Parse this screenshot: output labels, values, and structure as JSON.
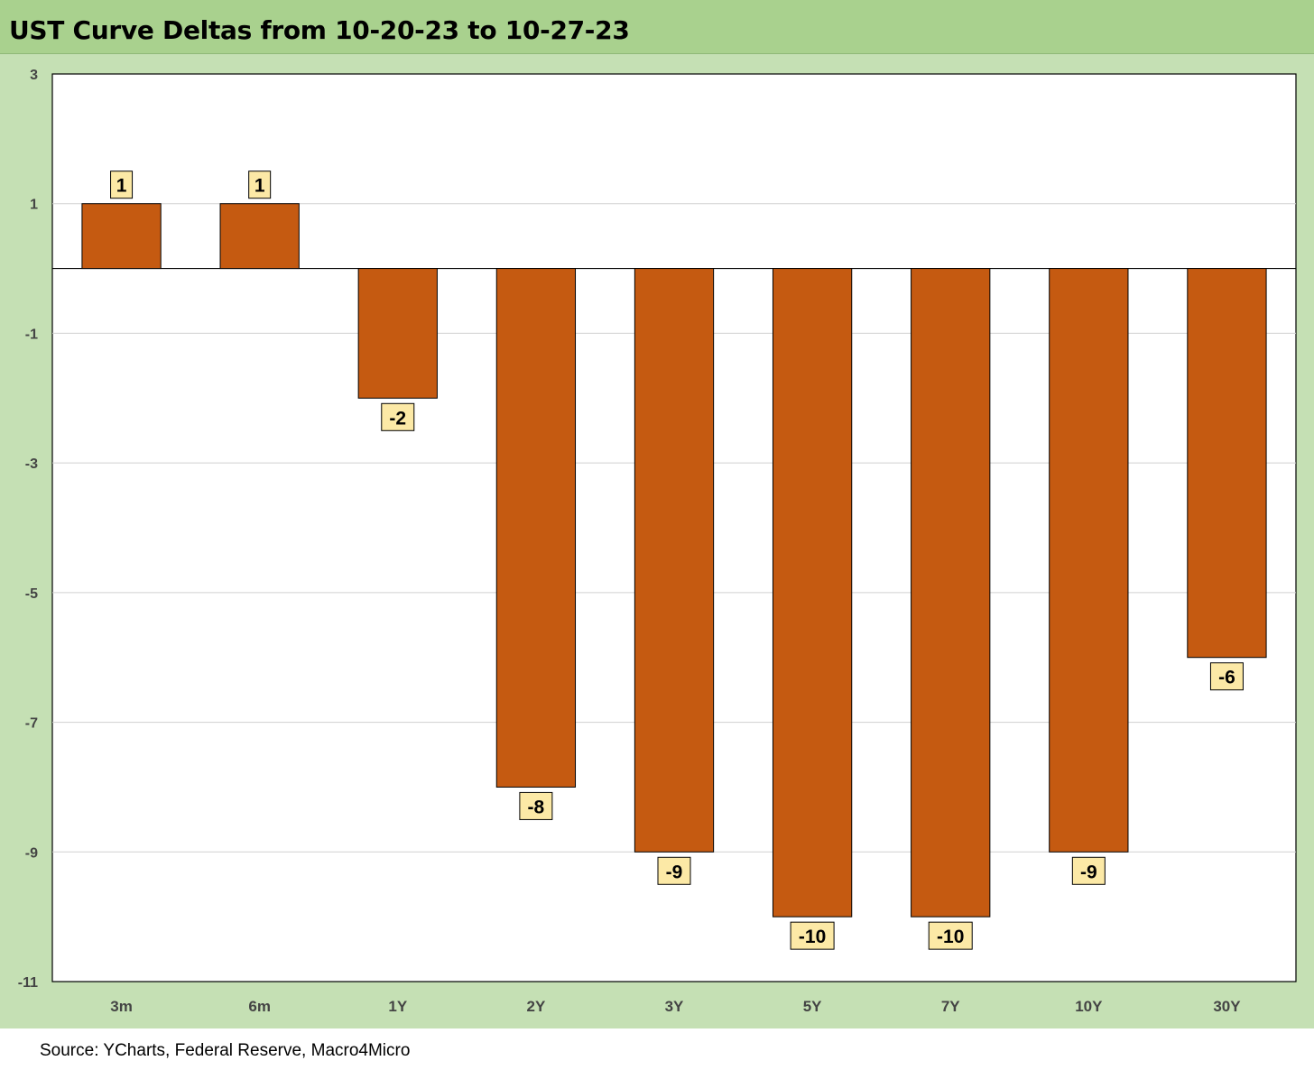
{
  "header": {
    "title": "UST Curve Deltas from 10-20-23 to 10-27-23"
  },
  "footer": {
    "source": "Source: YCharts, Federal Reserve, Macro4Micro"
  },
  "chart_data": {
    "type": "bar",
    "title": "UST Curve Deltas from 10-20-23 to 10-27-23",
    "xlabel": "",
    "ylabel": "",
    "categories": [
      "3m",
      "6m",
      "1Y",
      "2Y",
      "3Y",
      "5Y",
      "7Y",
      "10Y",
      "30Y"
    ],
    "values": [
      1,
      1,
      -2,
      -8,
      -9,
      -10,
      -10,
      -9,
      -6
    ],
    "data_labels": [
      "1",
      "1",
      "-2",
      "-8",
      "-9",
      "-10",
      "-10",
      "-9",
      "-6"
    ],
    "ylim": [
      -11,
      3
    ],
    "yticks": [
      3,
      1,
      -1,
      -3,
      -5,
      -7,
      -9,
      -11
    ],
    "grid": true,
    "legend": "none",
    "colors": {
      "bar": "#c55a11",
      "label_box": "#fce9a6",
      "panel": "#c5e0b4",
      "title_bar": "#a9d18e"
    }
  }
}
